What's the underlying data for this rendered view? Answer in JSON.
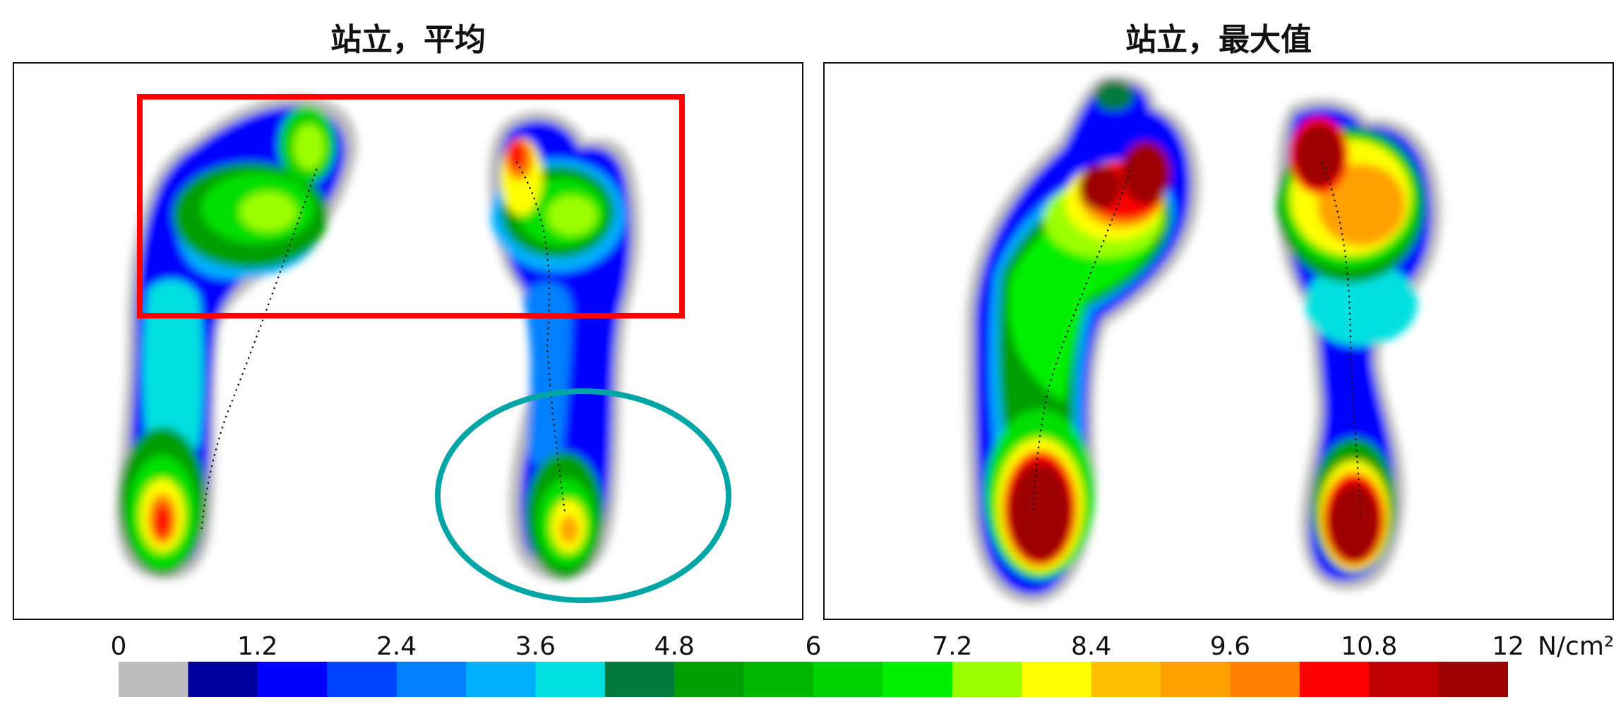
{
  "chart_data": {
    "type": "heatmap",
    "panels": [
      {
        "title": "站立，平均",
        "annotations": [
          "red-rectangle-forefoot",
          "teal-ellipse-right-heel"
        ]
      },
      {
        "title": "站立，最大值",
        "annotations": []
      }
    ],
    "colorbar": {
      "unit": "N/cm²",
      "range": [
        0,
        12
      ],
      "tick_labels": [
        "0",
        "1.2",
        "2.4",
        "3.6",
        "4.8",
        "6",
        "7.2",
        "8.4",
        "9.6",
        "10.8",
        "12"
      ],
      "tick_values": [
        0,
        1.2,
        2.4,
        3.6,
        4.8,
        6,
        7.2,
        8.4,
        9.6,
        10.8,
        12
      ],
      "colors": [
        "#bdbdbd",
        "#00009e",
        "#0000ff",
        "#0044ff",
        "#0080ff",
        "#00b0ff",
        "#00e0e0",
        "#007a3c",
        "#009e00",
        "#00b800",
        "#00d200",
        "#00f000",
        "#9cff00",
        "#ffff00",
        "#ffc000",
        "#ffa000",
        "#ff8000",
        "#ff0000",
        "#c00000",
        "#9c0000"
      ]
    }
  }
}
